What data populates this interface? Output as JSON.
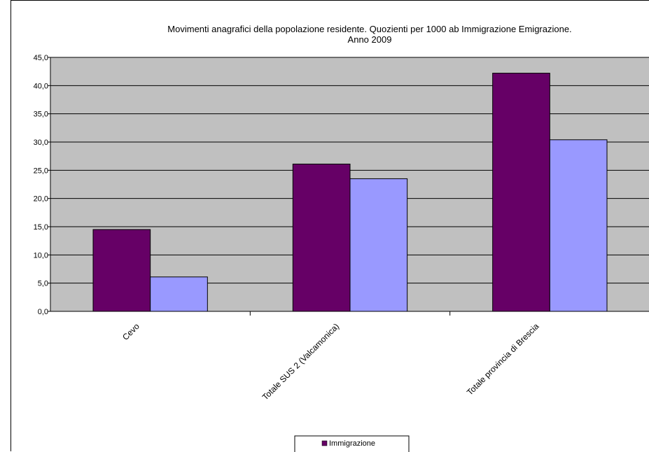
{
  "chart_data": {
    "type": "bar",
    "title": "Movimenti anagrafici della popolazione residente. Quozienti per 1000  ab Immigrazione Emigrazione.",
    "subtitle": "Anno 2009",
    "categories": [
      "Cevo",
      "Totale SUS 2 (Valcamonica)",
      "Totale provincia di Brescia"
    ],
    "series": [
      {
        "name": "Immigrazione",
        "color": "#660066",
        "values": [
          14.5,
          26.1,
          42.2
        ]
      },
      {
        "color": "#9999ff",
        "values": [
          6.1,
          23.5,
          30.4
        ]
      }
    ],
    "ylim": [
      0,
      45
    ],
    "yticks": [
      "0,0",
      "5,0",
      "10,0",
      "15,0",
      "20,0",
      "25,0",
      "30,0",
      "35,0",
      "40,0",
      "45,0"
    ],
    "grid": true,
    "plot_background": "#c0c0c0",
    "legend_position": "bottom"
  }
}
